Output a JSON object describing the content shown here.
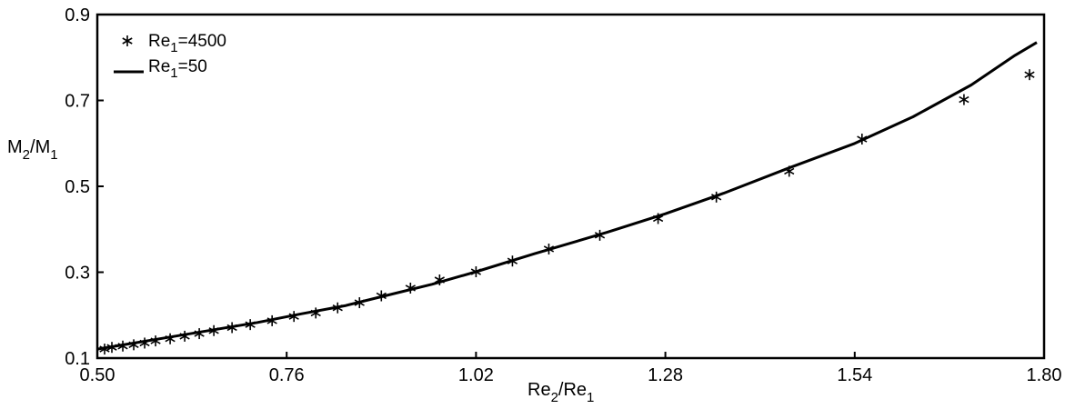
{
  "chart_data": {
    "type": "scatter",
    "title": "",
    "xlabel": {
      "main": "Re",
      "sub1": "2",
      "sep": "/Re",
      "sub2": "1"
    },
    "ylabel": {
      "main": "M",
      "sub1": "2",
      "sep": "/M",
      "sub2": "1"
    },
    "xlim": [
      0.5,
      1.8
    ],
    "ylim": [
      0.1,
      0.9
    ],
    "xticks": [
      "0.50",
      "0.76",
      "1.02",
      "1.28",
      "1.54",
      "1.80"
    ],
    "yticks": [
      "0.1",
      "0.3",
      "0.5",
      "0.7",
      "0.9"
    ],
    "grid": false,
    "legend_position": "top-left",
    "series": [
      {
        "name": {
          "main": "Re",
          "sub": "1",
          "rest": "=4500"
        },
        "kind": "markers",
        "marker": "asterisk",
        "color": "#000000",
        "points": [
          [
            0.51,
            0.121
          ],
          [
            0.52,
            0.125
          ],
          [
            0.535,
            0.128
          ],
          [
            0.55,
            0.131
          ],
          [
            0.565,
            0.135
          ],
          [
            0.58,
            0.14
          ],
          [
            0.6,
            0.145
          ],
          [
            0.62,
            0.151
          ],
          [
            0.64,
            0.157
          ],
          [
            0.66,
            0.164
          ],
          [
            0.685,
            0.171
          ],
          [
            0.71,
            0.178
          ],
          [
            0.74,
            0.187
          ],
          [
            0.77,
            0.197
          ],
          [
            0.8,
            0.205
          ],
          [
            0.83,
            0.217
          ],
          [
            0.86,
            0.229
          ],
          [
            0.89,
            0.245
          ],
          [
            0.93,
            0.263
          ],
          [
            0.97,
            0.282
          ],
          [
            1.02,
            0.301
          ],
          [
            1.07,
            0.326
          ],
          [
            1.12,
            0.354
          ],
          [
            1.19,
            0.386
          ],
          [
            1.27,
            0.425
          ],
          [
            1.35,
            0.475
          ],
          [
            1.45,
            0.535
          ],
          [
            1.55,
            0.61
          ],
          [
            1.69,
            0.702
          ],
          [
            1.78,
            0.76
          ]
        ]
      },
      {
        "name": {
          "main": "Re",
          "sub": "1",
          "rest": "=50"
        },
        "kind": "line",
        "color": "#000000",
        "points": [
          [
            0.5,
            0.121
          ],
          [
            0.55,
            0.135
          ],
          [
            0.6,
            0.149
          ],
          [
            0.66,
            0.166
          ],
          [
            0.72,
            0.183
          ],
          [
            0.78,
            0.203
          ],
          [
            0.84,
            0.222
          ],
          [
            0.9,
            0.247
          ],
          [
            0.96,
            0.272
          ],
          [
            1.02,
            0.301
          ],
          [
            1.1,
            0.343
          ],
          [
            1.2,
            0.393
          ],
          [
            1.28,
            0.436
          ],
          [
            1.36,
            0.484
          ],
          [
            1.45,
            0.543
          ],
          [
            1.54,
            0.6
          ],
          [
            1.62,
            0.662
          ],
          [
            1.7,
            0.736
          ],
          [
            1.76,
            0.805
          ],
          [
            1.79,
            0.835
          ]
        ]
      }
    ]
  }
}
